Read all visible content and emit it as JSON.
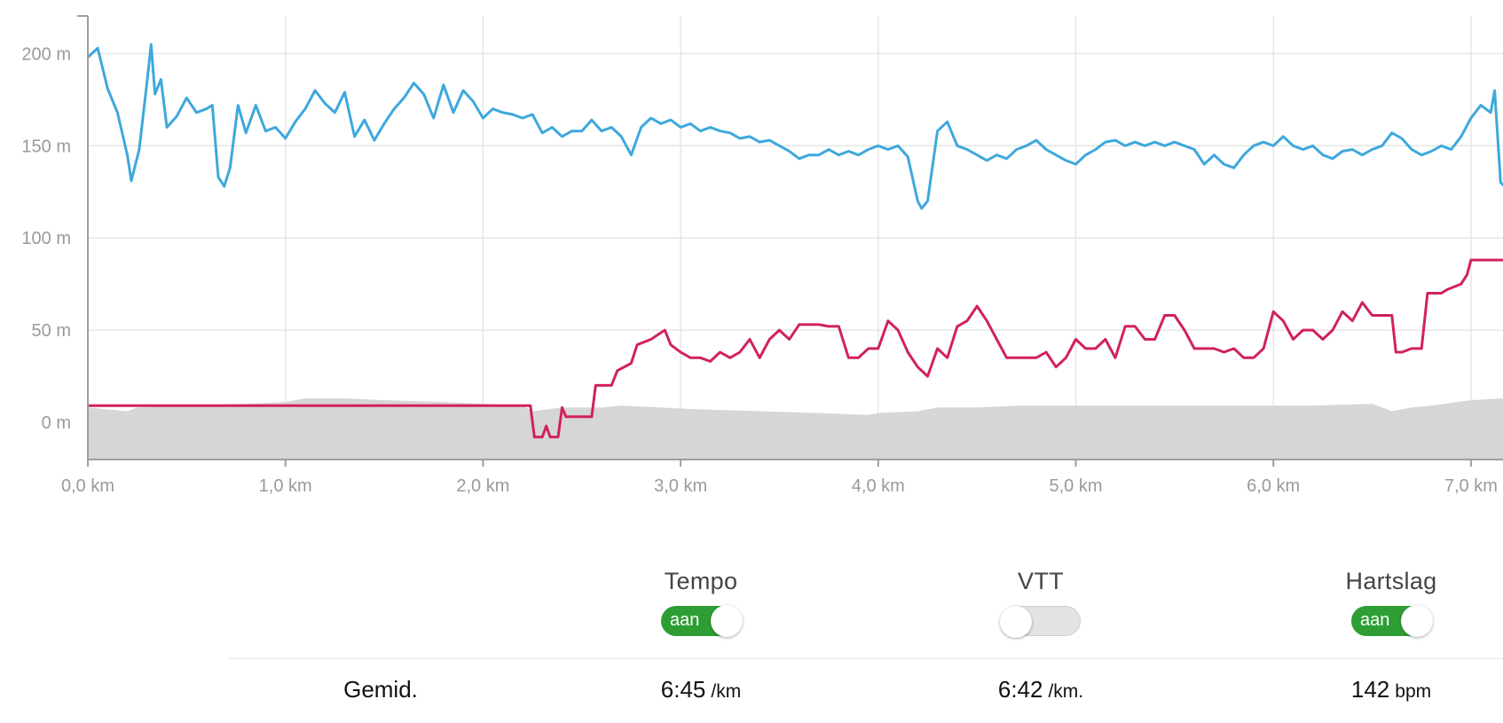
{
  "chart_data": {
    "type": "line",
    "xlabel": "",
    "ylabel": "",
    "xlim": [
      0,
      7.17
    ],
    "ylim": [
      -20,
      220
    ],
    "x_ticks": [
      "0,0 km",
      "1,0 km",
      "2,0 km",
      "3,0 km",
      "4,0 km",
      "5,0 km",
      "6,0 km",
      "7,0 km"
    ],
    "y_ticks": [
      "0 m",
      "50 m",
      "100 m",
      "150 m",
      "200 m"
    ],
    "grid": true,
    "colors": {
      "tempo": "#3ea8dc",
      "heart_rate": "#d1225a",
      "elevation": "#d6d6d6"
    },
    "series": [
      {
        "color": "#3ea8dc",
        "points": [
          [
            0.0,
            198
          ],
          [
            0.05,
            203
          ],
          [
            0.1,
            181
          ],
          [
            0.15,
            168
          ],
          [
            0.2,
            145
          ],
          [
            0.22,
            131
          ],
          [
            0.26,
            148
          ],
          [
            0.3,
            185
          ],
          [
            0.32,
            205
          ],
          [
            0.34,
            178
          ],
          [
            0.37,
            186
          ],
          [
            0.4,
            160
          ],
          [
            0.45,
            166
          ],
          [
            0.5,
            176
          ],
          [
            0.55,
            168
          ],
          [
            0.6,
            170
          ],
          [
            0.63,
            172
          ],
          [
            0.66,
            133
          ],
          [
            0.69,
            128
          ],
          [
            0.72,
            138
          ],
          [
            0.76,
            172
          ],
          [
            0.8,
            157
          ],
          [
            0.85,
            172
          ],
          [
            0.9,
            158
          ],
          [
            0.95,
            160
          ],
          [
            1.0,
            154
          ],
          [
            1.05,
            163
          ],
          [
            1.1,
            170
          ],
          [
            1.15,
            180
          ],
          [
            1.2,
            173
          ],
          [
            1.25,
            168
          ],
          [
            1.3,
            179
          ],
          [
            1.35,
            155
          ],
          [
            1.4,
            164
          ],
          [
            1.45,
            153
          ],
          [
            1.5,
            162
          ],
          [
            1.55,
            170
          ],
          [
            1.6,
            176
          ],
          [
            1.65,
            184
          ],
          [
            1.7,
            178
          ],
          [
            1.75,
            165
          ],
          [
            1.8,
            183
          ],
          [
            1.85,
            168
          ],
          [
            1.9,
            180
          ],
          [
            1.95,
            174
          ],
          [
            2.0,
            165
          ],
          [
            2.05,
            170
          ],
          [
            2.1,
            168
          ],
          [
            2.15,
            167
          ],
          [
            2.2,
            165
          ],
          [
            2.25,
            167
          ],
          [
            2.3,
            157
          ],
          [
            2.35,
            160
          ],
          [
            2.4,
            155
          ],
          [
            2.45,
            158
          ],
          [
            2.5,
            158
          ],
          [
            2.55,
            164
          ],
          [
            2.6,
            158
          ],
          [
            2.65,
            160
          ],
          [
            2.7,
            155
          ],
          [
            2.75,
            145
          ],
          [
            2.8,
            160
          ],
          [
            2.85,
            165
          ],
          [
            2.9,
            162
          ],
          [
            2.95,
            164
          ],
          [
            3.0,
            160
          ],
          [
            3.05,
            162
          ],
          [
            3.1,
            158
          ],
          [
            3.15,
            160
          ],
          [
            3.2,
            158
          ],
          [
            3.25,
            157
          ],
          [
            3.3,
            154
          ],
          [
            3.35,
            155
          ],
          [
            3.4,
            152
          ],
          [
            3.45,
            153
          ],
          [
            3.5,
            150
          ],
          [
            3.55,
            147
          ],
          [
            3.6,
            143
          ],
          [
            3.65,
            145
          ],
          [
            3.7,
            145
          ],
          [
            3.75,
            148
          ],
          [
            3.8,
            145
          ],
          [
            3.85,
            147
          ],
          [
            3.9,
            145
          ],
          [
            3.95,
            148
          ],
          [
            4.0,
            150
          ],
          [
            4.05,
            148
          ],
          [
            4.1,
            150
          ],
          [
            4.15,
            144
          ],
          [
            4.2,
            120
          ],
          [
            4.22,
            116
          ],
          [
            4.25,
            120
          ],
          [
            4.3,
            158
          ],
          [
            4.35,
            163
          ],
          [
            4.4,
            150
          ],
          [
            4.45,
            148
          ],
          [
            4.5,
            145
          ],
          [
            4.55,
            142
          ],
          [
            4.6,
            145
          ],
          [
            4.65,
            143
          ],
          [
            4.7,
            148
          ],
          [
            4.75,
            150
          ],
          [
            4.8,
            153
          ],
          [
            4.85,
            148
          ],
          [
            4.9,
            145
          ],
          [
            4.95,
            142
          ],
          [
            5.0,
            140
          ],
          [
            5.05,
            145
          ],
          [
            5.1,
            148
          ],
          [
            5.15,
            152
          ],
          [
            5.2,
            153
          ],
          [
            5.25,
            150
          ],
          [
            5.3,
            152
          ],
          [
            5.35,
            150
          ],
          [
            5.4,
            152
          ],
          [
            5.45,
            150
          ],
          [
            5.5,
            152
          ],
          [
            5.55,
            150
          ],
          [
            5.6,
            148
          ],
          [
            5.65,
            140
          ],
          [
            5.7,
            145
          ],
          [
            5.75,
            140
          ],
          [
            5.8,
            138
          ],
          [
            5.85,
            145
          ],
          [
            5.9,
            150
          ],
          [
            5.95,
            152
          ],
          [
            6.0,
            150
          ],
          [
            6.05,
            155
          ],
          [
            6.1,
            150
          ],
          [
            6.15,
            148
          ],
          [
            6.2,
            150
          ],
          [
            6.25,
            145
          ],
          [
            6.3,
            143
          ],
          [
            6.35,
            147
          ],
          [
            6.4,
            148
          ],
          [
            6.45,
            145
          ],
          [
            6.5,
            148
          ],
          [
            6.55,
            150
          ],
          [
            6.6,
            157
          ],
          [
            6.65,
            154
          ],
          [
            6.7,
            148
          ],
          [
            6.75,
            145
          ],
          [
            6.8,
            147
          ],
          [
            6.85,
            150
          ],
          [
            6.9,
            148
          ],
          [
            6.95,
            155
          ],
          [
            7.0,
            165
          ],
          [
            7.05,
            172
          ],
          [
            7.1,
            168
          ],
          [
            7.12,
            180
          ],
          [
            7.15,
            130
          ],
          [
            7.17,
            128
          ]
        ]
      },
      {
        "color": "#d1225a",
        "points": [
          [
            0.0,
            9
          ],
          [
            2.24,
            9
          ],
          [
            2.26,
            -8
          ],
          [
            2.3,
            -8
          ],
          [
            2.32,
            -2
          ],
          [
            2.34,
            -8
          ],
          [
            2.38,
            -8
          ],
          [
            2.4,
            8
          ],
          [
            2.42,
            3
          ],
          [
            2.55,
            3
          ],
          [
            2.57,
            20
          ],
          [
            2.65,
            20
          ],
          [
            2.68,
            28
          ],
          [
            2.75,
            32
          ],
          [
            2.78,
            42
          ],
          [
            2.85,
            45
          ],
          [
            2.92,
            50
          ],
          [
            2.95,
            42
          ],
          [
            3.0,
            38
          ],
          [
            3.05,
            35
          ],
          [
            3.1,
            35
          ],
          [
            3.15,
            33
          ],
          [
            3.2,
            38
          ],
          [
            3.25,
            35
          ],
          [
            3.3,
            38
          ],
          [
            3.35,
            45
          ],
          [
            3.4,
            35
          ],
          [
            3.45,
            45
          ],
          [
            3.5,
            50
          ],
          [
            3.55,
            45
          ],
          [
            3.6,
            53
          ],
          [
            3.65,
            53
          ],
          [
            3.7,
            53
          ],
          [
            3.75,
            52
          ],
          [
            3.8,
            52
          ],
          [
            3.85,
            35
          ],
          [
            3.9,
            35
          ],
          [
            3.95,
            40
          ],
          [
            4.0,
            40
          ],
          [
            4.05,
            55
          ],
          [
            4.1,
            50
          ],
          [
            4.15,
            38
          ],
          [
            4.2,
            30
          ],
          [
            4.25,
            25
          ],
          [
            4.3,
            40
          ],
          [
            4.35,
            35
          ],
          [
            4.4,
            52
          ],
          [
            4.45,
            55
          ],
          [
            4.5,
            63
          ],
          [
            4.55,
            55
          ],
          [
            4.6,
            45
          ],
          [
            4.65,
            35
          ],
          [
            4.7,
            35
          ],
          [
            4.75,
            35
          ],
          [
            4.8,
            35
          ],
          [
            4.85,
            38
          ],
          [
            4.9,
            30
          ],
          [
            4.95,
            35
          ],
          [
            5.0,
            45
          ],
          [
            5.05,
            40
          ],
          [
            5.1,
            40
          ],
          [
            5.15,
            45
          ],
          [
            5.2,
            35
          ],
          [
            5.25,
            52
          ],
          [
            5.3,
            52
          ],
          [
            5.35,
            45
          ],
          [
            5.4,
            45
          ],
          [
            5.45,
            58
          ],
          [
            5.5,
            58
          ],
          [
            5.55,
            50
          ],
          [
            5.6,
            40
          ],
          [
            5.65,
            40
          ],
          [
            5.7,
            40
          ],
          [
            5.75,
            38
          ],
          [
            5.8,
            40
          ],
          [
            5.85,
            35
          ],
          [
            5.9,
            35
          ],
          [
            5.95,
            40
          ],
          [
            6.0,
            60
          ],
          [
            6.05,
            55
          ],
          [
            6.1,
            45
          ],
          [
            6.15,
            50
          ],
          [
            6.2,
            50
          ],
          [
            6.25,
            45
          ],
          [
            6.3,
            50
          ],
          [
            6.35,
            60
          ],
          [
            6.4,
            55
          ],
          [
            6.45,
            65
          ],
          [
            6.5,
            58
          ],
          [
            6.55,
            58
          ],
          [
            6.6,
            58
          ],
          [
            6.62,
            38
          ],
          [
            6.65,
            38
          ],
          [
            6.7,
            40
          ],
          [
            6.75,
            40
          ],
          [
            6.78,
            70
          ],
          [
            6.85,
            70
          ],
          [
            6.88,
            72
          ],
          [
            6.95,
            75
          ],
          [
            6.98,
            80
          ],
          [
            7.0,
            88
          ],
          [
            7.17,
            88
          ]
        ]
      },
      {
        "color": "#d6d6d6",
        "points": [
          [
            0.0,
            8
          ],
          [
            0.2,
            6
          ],
          [
            0.25,
            8
          ],
          [
            0.5,
            9
          ],
          [
            0.8,
            10
          ],
          [
            1.0,
            11
          ],
          [
            1.1,
            13
          ],
          [
            1.3,
            13
          ],
          [
            1.5,
            12
          ],
          [
            1.8,
            11
          ],
          [
            2.0,
            10
          ],
          [
            2.2,
            9
          ],
          [
            2.25,
            6
          ],
          [
            2.4,
            8
          ],
          [
            2.6,
            8
          ],
          [
            2.7,
            9
          ],
          [
            2.9,
            8
          ],
          [
            3.1,
            7
          ],
          [
            3.4,
            6
          ],
          [
            3.7,
            5
          ],
          [
            3.95,
            4
          ],
          [
            4.0,
            5
          ],
          [
            4.2,
            6
          ],
          [
            4.3,
            8
          ],
          [
            4.5,
            8
          ],
          [
            4.7,
            9
          ],
          [
            5.0,
            9
          ],
          [
            5.5,
            9
          ],
          [
            6.0,
            9
          ],
          [
            6.2,
            9
          ],
          [
            6.5,
            10
          ],
          [
            6.6,
            6
          ],
          [
            6.7,
            8
          ],
          [
            6.8,
            9
          ],
          [
            7.0,
            12
          ],
          [
            7.17,
            13
          ]
        ]
      }
    ]
  },
  "controls": [
    {
      "label": "Tempo",
      "state": "on",
      "state_text": "aan"
    },
    {
      "label": "VTT",
      "state": "off",
      "state_text": ""
    },
    {
      "label": "Hartslag",
      "state": "on",
      "state_text": "aan"
    }
  ],
  "summary": {
    "label": "Gemid.",
    "tempo": {
      "value": "6:45",
      "unit": "/km"
    },
    "vtt": {
      "value": "6:42",
      "unit": "/km."
    },
    "hartslag": {
      "value": "142",
      "unit": "bpm"
    }
  }
}
